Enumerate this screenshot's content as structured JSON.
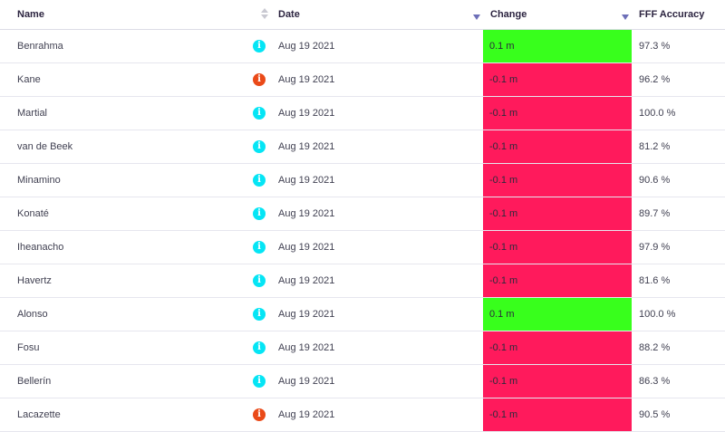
{
  "header": {
    "name": "Name",
    "date": "Date",
    "change": "Change",
    "accuracy": "FFF Accuracy"
  },
  "colors": {
    "positive": "#38ff1c",
    "negative": "#ff1a5c",
    "info_cyan": "#05e5f5",
    "info_red": "#ea4a18"
  },
  "rows": [
    {
      "name": "Benrahma",
      "icon": "info-cyan-icon",
      "date": "Aug 19 2021",
      "change": "0.1 m",
      "trend": "up",
      "accuracy": "97.3 %"
    },
    {
      "name": "Kane",
      "icon": "info-red-icon",
      "date": "Aug 19 2021",
      "change": "-0.1 m",
      "trend": "down",
      "accuracy": "96.2 %"
    },
    {
      "name": "Martial",
      "icon": "info-cyan-icon",
      "date": "Aug 19 2021",
      "change": "-0.1 m",
      "trend": "down",
      "accuracy": "100.0 %"
    },
    {
      "name": "van de Beek",
      "icon": "info-cyan-icon",
      "date": "Aug 19 2021",
      "change": "-0.1 m",
      "trend": "down",
      "accuracy": "81.2 %"
    },
    {
      "name": "Minamino",
      "icon": "info-cyan-icon",
      "date": "Aug 19 2021",
      "change": "-0.1 m",
      "trend": "down",
      "accuracy": "90.6 %"
    },
    {
      "name": "Konaté",
      "icon": "info-cyan-icon",
      "date": "Aug 19 2021",
      "change": "-0.1 m",
      "trend": "down",
      "accuracy": "89.7 %"
    },
    {
      "name": "Iheanacho",
      "icon": "info-cyan-icon",
      "date": "Aug 19 2021",
      "change": "-0.1 m",
      "trend": "down",
      "accuracy": "97.9 %"
    },
    {
      "name": "Havertz",
      "icon": "info-cyan-icon",
      "date": "Aug 19 2021",
      "change": "-0.1 m",
      "trend": "down",
      "accuracy": "81.6 %"
    },
    {
      "name": "Alonso",
      "icon": "info-cyan-icon",
      "date": "Aug 19 2021",
      "change": "0.1 m",
      "trend": "up",
      "accuracy": "100.0 %"
    },
    {
      "name": "Fosu",
      "icon": "info-cyan-icon",
      "date": "Aug 19 2021",
      "change": "-0.1 m",
      "trend": "down",
      "accuracy": "88.2 %"
    },
    {
      "name": "Bellerín",
      "icon": "info-cyan-icon",
      "date": "Aug 19 2021",
      "change": "-0.1 m",
      "trend": "down",
      "accuracy": "86.3 %"
    },
    {
      "name": "Lacazette",
      "icon": "info-red-icon",
      "date": "Aug 19 2021",
      "change": "-0.1 m",
      "trend": "down",
      "accuracy": "90.5 %"
    }
  ]
}
